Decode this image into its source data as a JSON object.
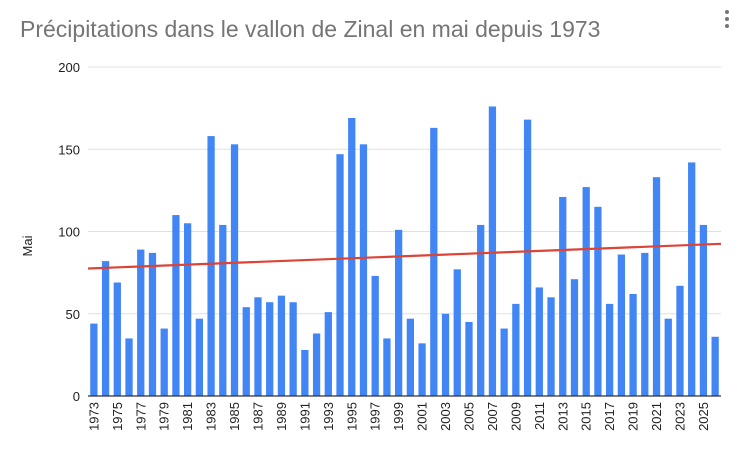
{
  "chart_data": {
    "type": "bar",
    "title": "Précipitations dans le vallon de Zinal en mai depuis 1973",
    "xlabel": "",
    "ylabel": "Mai",
    "ylim": [
      0,
      200
    ],
    "yticks": [
      0,
      50,
      100,
      150,
      200
    ],
    "grid": true,
    "legend": "none",
    "categories": [
      "1973",
      "1974",
      "1975",
      "1976",
      "1977",
      "1978",
      "1979",
      "1980",
      "1981",
      "1982",
      "1983",
      "1984",
      "1985",
      "1986",
      "1987",
      "1988",
      "1989",
      "1990",
      "1991",
      "1992",
      "1993",
      "1994",
      "1995",
      "1996",
      "1997",
      "1998",
      "1999",
      "2000",
      "2001",
      "2002",
      "2003",
      "2004",
      "2005",
      "2006",
      "2007",
      "2008",
      "2009",
      "2010",
      "2011",
      "2012",
      "2013",
      "2014",
      "2015",
      "2016",
      "2017",
      "2018",
      "2019",
      "2020",
      "2021",
      "2022",
      "2023",
      "2024",
      "2025",
      "2026"
    ],
    "xtick_labels": [
      "1973",
      "1975",
      "1977",
      "1979",
      "1981",
      "1983",
      "1985",
      "1987",
      "1989",
      "1991",
      "1993",
      "1995",
      "1997",
      "1999",
      "2001",
      "2003",
      "2005",
      "2007",
      "2009",
      "2011",
      "2013",
      "2015",
      "2017",
      "2019",
      "2021",
      "2023",
      "2025"
    ],
    "values": [
      44,
      82,
      69,
      35,
      89,
      87,
      41,
      110,
      105,
      47,
      158,
      104,
      153,
      54,
      60,
      57,
      61,
      57,
      28,
      38,
      51,
      147,
      169,
      153,
      73,
      35,
      101,
      47,
      32,
      163,
      50,
      77,
      45,
      104,
      176,
      41,
      56,
      168,
      66,
      60,
      121,
      71,
      127,
      115,
      56,
      86,
      62,
      87,
      133,
      47,
      67,
      142,
      104,
      36
    ],
    "trendline": {
      "start": 77.5,
      "end": 92.5
    },
    "colors": {
      "bar": "#4285f4",
      "trend": "#db4437",
      "grid": "#e0e0e0",
      "axis": "#333333"
    }
  },
  "ui": {
    "menu_icon": "more-vert-icon"
  }
}
